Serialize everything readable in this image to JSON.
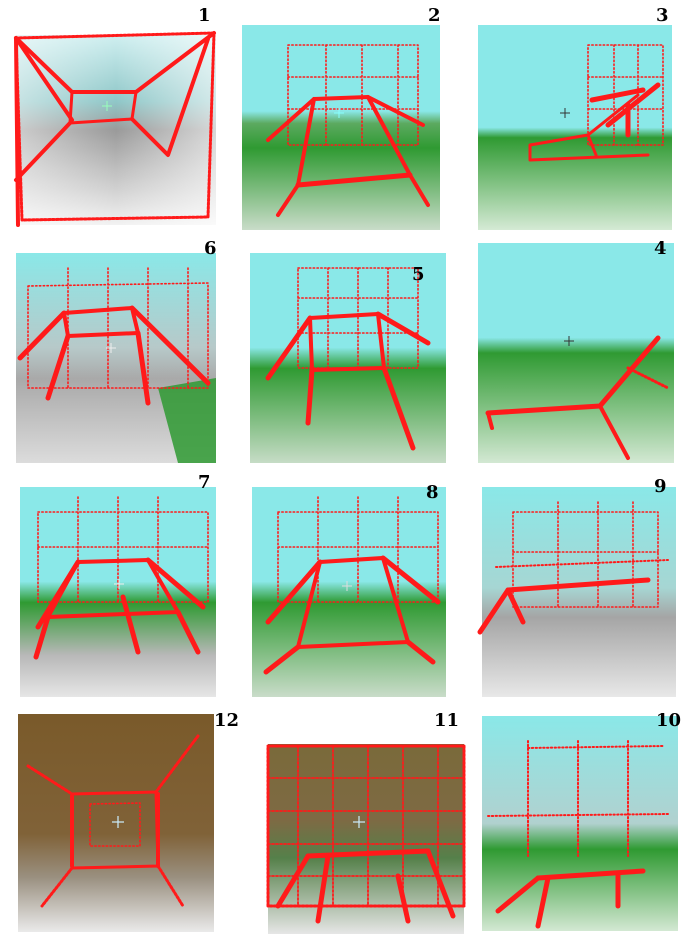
{
  "panels": [
    {
      "label": "1"
    },
    {
      "label": "2"
    },
    {
      "label": "3"
    },
    {
      "label": "6"
    },
    {
      "label": "5"
    },
    {
      "label": "4"
    },
    {
      "label": "7"
    },
    {
      "label": "8"
    },
    {
      "label": "9"
    },
    {
      "label": "12"
    },
    {
      "label": "11"
    },
    {
      "label": "10"
    }
  ],
  "colors": {
    "skeleton": "#ff1a1a",
    "sky": "#7fe6e6",
    "ground_green": "#2f9a32",
    "floor_grey": "#b8b8b8",
    "wall_brown": "#7a5a2a"
  }
}
